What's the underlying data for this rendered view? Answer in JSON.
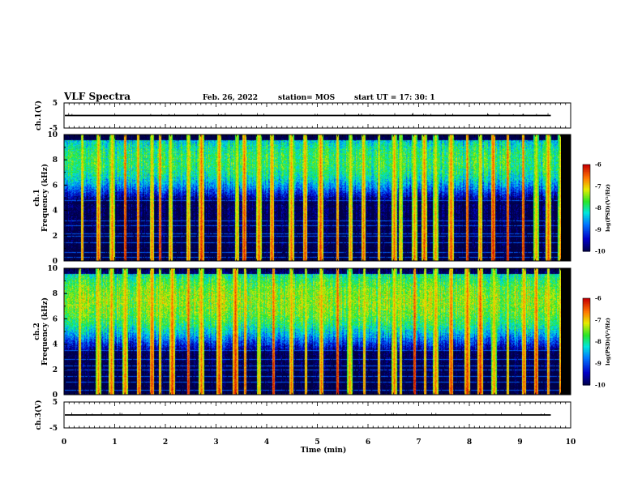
{
  "header": {
    "title": "VLF Spectra",
    "date": "Feb. 26, 2022",
    "station": "station= MOS",
    "start_ut": "start  UT  =    17: 30: 1"
  },
  "chart_data": {
    "type": "heatmap",
    "xlabel": "Time  (min)",
    "xlim": [
      0,
      10
    ],
    "xticks": [
      "0",
      "1",
      "2",
      "3",
      "4",
      "5",
      "6",
      "7",
      "8",
      "9",
      "10"
    ],
    "data_end_min": 9.8,
    "panels": [
      {
        "id": "ch1-voltage",
        "type": "line",
        "ylabel": "ch.1(V)",
        "ylim": [
          -5,
          5
        ],
        "yticks": [
          "5",
          "-5"
        ],
        "baseline_value": 0
      },
      {
        "id": "ch1-spectrogram",
        "type": "heatmap",
        "ylabel": "Frequency  (kHz)",
        "ylabel_prefix": "ch.1",
        "ylim": [
          0,
          10
        ],
        "yticks": [
          "10",
          "8",
          "6",
          "4",
          "2",
          "0"
        ],
        "colorbar": {
          "label": "log(PSD)(V²/Hz)",
          "range": [
            -10,
            -6
          ],
          "ticks": [
            "-6",
            "-7",
            "-8",
            "-9",
            "-10"
          ]
        },
        "background_band_khz": [
          4.5,
          10
        ],
        "background_level": -7.8,
        "tone_lines_khz": [
          0.3,
          0.7,
          1.5,
          2.0,
          2.2,
          2.8,
          3.2,
          4.8
        ],
        "sferic_times_min": [
          0.35,
          0.67,
          0.95,
          1.2,
          1.45,
          1.72,
          1.88,
          2.1,
          2.45,
          2.7,
          3.05,
          3.4,
          3.55,
          3.83,
          4.1,
          4.48,
          4.75,
          5.05,
          5.38,
          5.64,
          5.9,
          6.2,
          6.5,
          6.63,
          6.9,
          7.1,
          7.33,
          7.62,
          7.94,
          8.2,
          8.45,
          8.75,
          9.05,
          9.3,
          9.55,
          9.78
        ]
      },
      {
        "id": "ch2-spectrogram",
        "type": "heatmap",
        "ylabel": "Frequency  (kHz)",
        "ylabel_prefix": "ch.2",
        "ylim": [
          0,
          10
        ],
        "yticks": [
          "10",
          "8",
          "6",
          "4",
          "2",
          "0"
        ],
        "colorbar": {
          "label": "log(PSD)(V²/Hz)",
          "range": [
            -10,
            -6
          ],
          "ticks": [
            "-6",
            "-7",
            "-8",
            "-9",
            "-10"
          ]
        },
        "background_band_khz": [
          3.5,
          10
        ],
        "background_level": -7.4,
        "tone_lines_khz": [
          0.4,
          1.0,
          1.5,
          2.0,
          2.3,
          2.8,
          3.5
        ],
        "sferic_times_min": [
          0.3,
          0.67,
          0.92,
          1.2,
          1.47,
          1.72,
          1.88,
          2.12,
          2.45,
          2.7,
          3.05,
          3.38,
          3.56,
          3.83,
          4.12,
          4.48,
          4.76,
          5.06,
          5.38,
          5.62,
          5.92,
          6.2,
          6.5,
          6.64,
          6.9,
          7.12,
          7.33,
          7.62,
          7.94,
          8.2,
          8.47,
          8.75,
          9.06,
          9.3,
          9.55,
          9.78
        ]
      },
      {
        "id": "ch2-voltage",
        "type": "line",
        "ylabel": "ch.3(V)",
        "ylim": [
          -5,
          5
        ],
        "yticks": [
          "5",
          "-5"
        ],
        "baseline_value": 0
      }
    ]
  }
}
